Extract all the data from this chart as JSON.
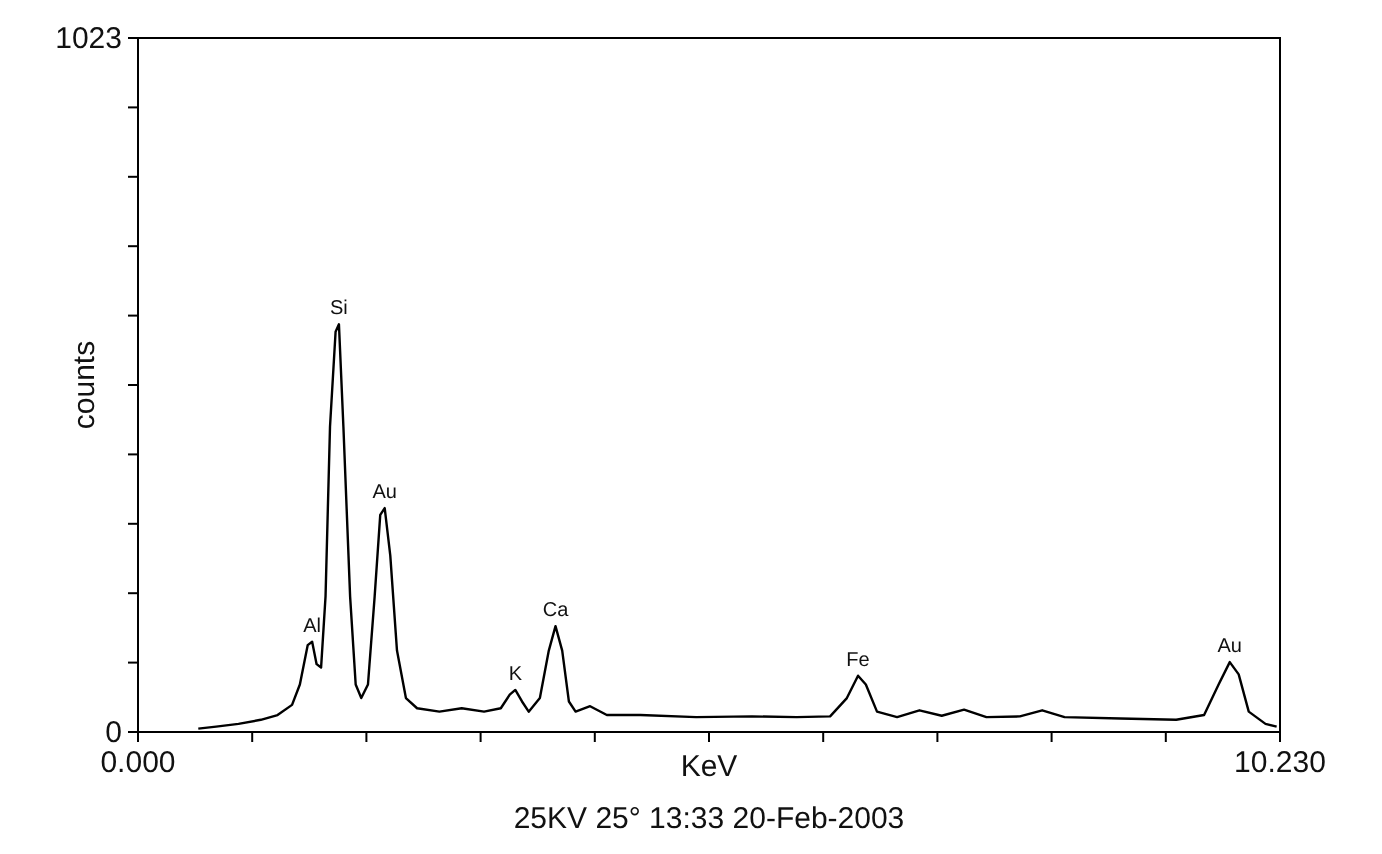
{
  "chart_data": {
    "type": "line",
    "xlabel": "KeV",
    "ylabel": "counts",
    "x": [
      0.54,
      0.7,
      0.9,
      1.1,
      1.25,
      1.38,
      1.45,
      1.52,
      1.56,
      1.6,
      1.64,
      1.68,
      1.72,
      1.77,
      1.8,
      1.84,
      1.9,
      1.95,
      2.0,
      2.06,
      2.12,
      2.17,
      2.21,
      2.26,
      2.32,
      2.4,
      2.5,
      2.7,
      2.9,
      3.1,
      3.25,
      3.33,
      3.38,
      3.44,
      3.5,
      3.6,
      3.68,
      3.74,
      3.8,
      3.86,
      3.92,
      4.05,
      4.2,
      4.5,
      5.0,
      5.5,
      5.9,
      6.2,
      6.35,
      6.45,
      6.52,
      6.62,
      6.8,
      7.0,
      7.2,
      7.4,
      7.6,
      7.9,
      8.1,
      8.3,
      8.8,
      9.3,
      9.55,
      9.68,
      9.78,
      9.86,
      9.95,
      10.1,
      10.2
    ],
    "series": [
      {
        "color": "#000000",
        "values": [
          5,
          8,
          12,
          18,
          25,
          40,
          70,
          128,
          133,
          100,
          95,
          200,
          450,
          590,
          601,
          450,
          200,
          70,
          50,
          70,
          200,
          320,
          330,
          260,
          120,
          50,
          35,
          30,
          35,
          30,
          35,
          55,
          62,
          45,
          30,
          50,
          120,
          156,
          120,
          45,
          30,
          38,
          25,
          25,
          22,
          23,
          22,
          23,
          50,
          83,
          70,
          30,
          22,
          32,
          24,
          33,
          22,
          23,
          32,
          22,
          20,
          18,
          25,
          70,
          103,
          85,
          30,
          12,
          8
        ]
      }
    ],
    "xlim": [
      0,
      10.23
    ],
    "xticks": [
      {
        "value": 0,
        "label": "0.000"
      },
      {
        "value": 1.023,
        "label": null
      },
      {
        "value": 2.046,
        "label": null
      },
      {
        "value": 3.069,
        "label": null
      },
      {
        "value": 4.092,
        "label": null
      },
      {
        "value": 5.115,
        "label": null
      },
      {
        "value": 6.138,
        "label": null
      },
      {
        "value": 7.161,
        "label": null
      },
      {
        "value": 8.184,
        "label": null
      },
      {
        "value": 9.207,
        "label": null
      },
      {
        "value": 10.23,
        "label": "10.230"
      }
    ],
    "ylim": [
      0,
      1023
    ],
    "yticks": [
      0,
      {
        "value": 102.3,
        "label": null
      },
      {
        "value": 204.6,
        "label": null
      },
      {
        "value": 306.9,
        "label": null
      },
      {
        "value": 409.2,
        "label": null
      },
      {
        "value": 511.5,
        "label": null
      },
      {
        "value": 613.8,
        "label": null
      },
      {
        "value": 716.1,
        "label": null
      },
      {
        "value": 818.4,
        "label": null
      },
      {
        "value": 920.7,
        "label": null
      },
      1023
    ],
    "grid": false,
    "annotations": [
      {
        "text": "Al",
        "x": 1.56,
        "y": 133
      },
      {
        "text": "Si",
        "x": 1.8,
        "y": 601
      },
      {
        "text": "Au",
        "x": 2.21,
        "y": 330
      },
      {
        "text": "K",
        "x": 3.38,
        "y": 62
      },
      {
        "text": "Ca",
        "x": 3.74,
        "y": 156
      },
      {
        "text": "Fe",
        "x": 6.45,
        "y": 83
      },
      {
        "text": "Au",
        "x": 9.78,
        "y": 103
      },
      "25KV 25° 13:33 20-Feb-2003"
    ]
  }
}
